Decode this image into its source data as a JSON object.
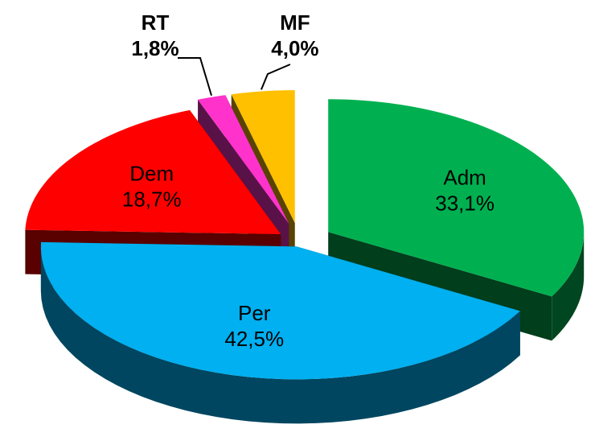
{
  "chart_data": {
    "type": "pie",
    "categories": [
      "Adm",
      "Per",
      "Dem",
      "RT",
      "MF"
    ],
    "values": [
      33.1,
      42.5,
      18.7,
      1.8,
      4.0
    ],
    "value_labels": [
      "33,1%",
      "42,5%",
      "18,7%",
      "1,8%",
      "4,0%"
    ],
    "colors": [
      "#00b050",
      "#00b0f0",
      "#ff0000",
      "#ff33cc",
      "#ffc000"
    ]
  }
}
